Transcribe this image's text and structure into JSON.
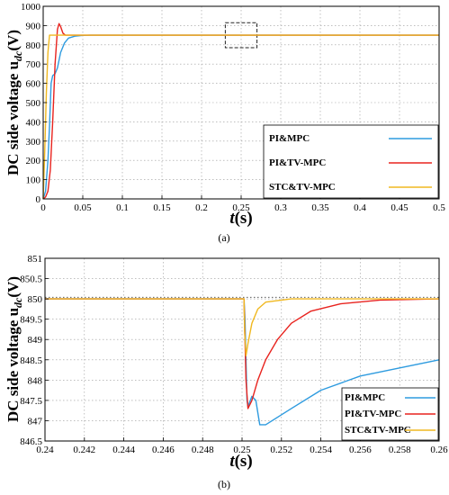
{
  "chart_data": [
    {
      "type": "line",
      "caption": "(a)",
      "ylabel": "DC side voltage u",
      "ylabel_sub": "dc",
      "ylabel_unit": "(V)",
      "xlabel": "t",
      "xlabel_unit": "(s)",
      "xlim": [
        0,
        0.5
      ],
      "ylim": [
        0,
        1000
      ],
      "xticks": [
        "0",
        "0.05",
        "0.1",
        "0.15",
        "0.2",
        "0.25",
        "0.3",
        "0.35",
        "0.4",
        "0.45",
        "0.5"
      ],
      "yticks": [
        "0",
        "100",
        "200",
        "300",
        "400",
        "500",
        "600",
        "700",
        "800",
        "900",
        "1000"
      ],
      "grid": true,
      "legend_position": "bottom-right",
      "zoom_box": {
        "x": [
          0.23,
          0.27
        ],
        "y": [
          785,
          915
        ]
      },
      "series": [
        {
          "name": "PI&MPC",
          "color": "#2e9bdf",
          "points": [
            [
              0,
              0
            ],
            [
              0.003,
              40
            ],
            [
              0.006,
              200
            ],
            [
              0.008,
              380
            ],
            [
              0.01,
              600
            ],
            [
              0.012,
              640
            ],
            [
              0.015,
              650
            ],
            [
              0.018,
              680
            ],
            [
              0.022,
              760
            ],
            [
              0.027,
              810
            ],
            [
              0.032,
              835
            ],
            [
              0.04,
              845
            ],
            [
              0.05,
              849
            ],
            [
              0.06,
              850
            ],
            [
              0.5,
              850
            ]
          ]
        },
        {
          "name": "PI&TV-MPC",
          "color": "#e8231e",
          "points": [
            [
              0,
              0
            ],
            [
              0.003,
              10
            ],
            [
              0.006,
              40
            ],
            [
              0.009,
              150
            ],
            [
              0.012,
              400
            ],
            [
              0.015,
              700
            ],
            [
              0.018,
              880
            ],
            [
              0.02,
              910
            ],
            [
              0.022,
              895
            ],
            [
              0.025,
              860
            ],
            [
              0.028,
              850
            ],
            [
              0.5,
              850
            ]
          ]
        },
        {
          "name": "STC&TV-MPC",
          "color": "#f0b820",
          "points": [
            [
              0,
              0
            ],
            [
              0.002,
              250
            ],
            [
              0.004,
              550
            ],
            [
              0.006,
              760
            ],
            [
              0.008,
              850
            ],
            [
              0.5,
              850
            ]
          ]
        }
      ]
    },
    {
      "type": "line",
      "caption": "(b)",
      "ylabel": "DC side voltage u",
      "ylabel_sub": "dc",
      "ylabel_unit": "(V)",
      "xlabel": "t",
      "xlabel_unit": "(s)",
      "xlim": [
        0.24,
        0.26
      ],
      "ylim": [
        846.5,
        851
      ],
      "xticks": [
        "0.24",
        "0.242",
        "0.244",
        "0.246",
        "0.248",
        "0.25",
        "0.252",
        "0.254",
        "0.256",
        "0.258",
        "0.26"
      ],
      "yticks": [
        "846.5",
        "847",
        "847.5",
        "848",
        "848.5",
        "849",
        "849.5",
        "850",
        "850.5",
        "851"
      ],
      "grid": true,
      "legend_position": "bottom-right",
      "series": [
        {
          "name": "PI&MPC",
          "color": "#2e9bdf",
          "points": [
            [
              0.24,
              850
            ],
            [
              0.2501,
              850
            ],
            [
              0.25015,
              849.5
            ],
            [
              0.2502,
              848.5
            ],
            [
              0.25025,
              847.5
            ],
            [
              0.2503,
              847.35
            ],
            [
              0.2505,
              847.6
            ],
            [
              0.2507,
              847.5
            ],
            [
              0.2509,
              846.9
            ],
            [
              0.2512,
              846.9
            ],
            [
              0.2525,
              847.3
            ],
            [
              0.254,
              847.75
            ],
            [
              0.256,
              848.1
            ],
            [
              0.258,
              848.3
            ],
            [
              0.26,
              848.5
            ]
          ]
        },
        {
          "name": "PI&TV-MPC",
          "color": "#e8231e",
          "points": [
            [
              0.24,
              850
            ],
            [
              0.2501,
              850
            ],
            [
              0.25015,
              849
            ],
            [
              0.2502,
              848
            ],
            [
              0.2503,
              847.3
            ],
            [
              0.2505,
              847.5
            ],
            [
              0.2508,
              848
            ],
            [
              0.2512,
              848.5
            ],
            [
              0.2518,
              849
            ],
            [
              0.2525,
              849.4
            ],
            [
              0.2535,
              849.7
            ],
            [
              0.255,
              849.88
            ],
            [
              0.257,
              849.97
            ],
            [
              0.26,
              850
            ]
          ]
        },
        {
          "name": "STC&TV-MPC",
          "color": "#f0b820",
          "points": [
            [
              0.24,
              850
            ],
            [
              0.2501,
              850
            ],
            [
              0.25013,
              849.2
            ],
            [
              0.2502,
              848.6
            ],
            [
              0.2503,
              848.9
            ],
            [
              0.2505,
              849.4
            ],
            [
              0.2508,
              849.75
            ],
            [
              0.2512,
              849.92
            ],
            [
              0.2525,
              850
            ],
            [
              0.26,
              850
            ]
          ]
        }
      ]
    }
  ]
}
